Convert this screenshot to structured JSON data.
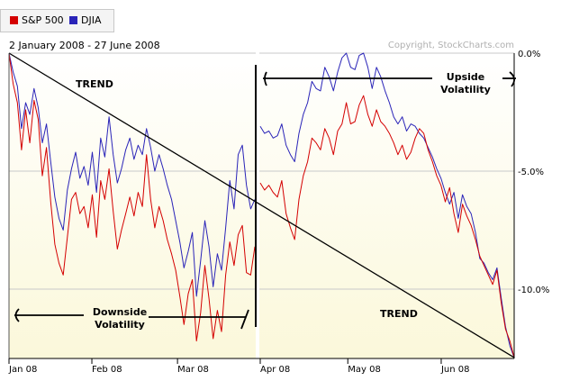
{
  "legend": {
    "items": [
      {
        "label": "S&P 500",
        "color": "#d40000"
      },
      {
        "label": "DJIA",
        "color": "#2a24b8"
      }
    ]
  },
  "header": {
    "date_range": "2 January 2008 - 27 June 2008",
    "copyright": "Copyright, StockCharts.com"
  },
  "annotations": {
    "trend_upper": "TREND",
    "trend_lower": "TREND",
    "upside_line1": "Upside",
    "upside_line2": "Volatility",
    "downside_line1": "Downside",
    "downside_line2": "Volatility"
  },
  "colors": {
    "background_top": "#ffffff",
    "background_bottom": "#fbf8da",
    "grid": "#c9c9c9",
    "axis": "#000000",
    "annotation": "#000000"
  },
  "chart_data": {
    "type": "line",
    "xlabel": "",
    "ylabel": "",
    "y_unit": "percent change",
    "ylim": [
      -12.9,
      0.5
    ],
    "yticks": [
      0,
      -5,
      -10
    ],
    "ytick_labels": [
      "0.0%",
      "-5.0%",
      "-10.0%"
    ],
    "xtick_labels": [
      "Jan 08",
      "Feb 08",
      "Mar 08",
      "Apr 08",
      "May 08",
      "Jun 08"
    ],
    "grid": true,
    "legend_position": "top-left",
    "series": [
      {
        "name": "S&P 500",
        "color": "#d40000",
        "segments": [
          {
            "start": "2008-01-02",
            "end": "2008-03-31",
            "values": [
              0.0,
              -1.3,
              -2.1,
              -4.1,
              -2.4,
              -3.8,
              -2.0,
              -2.8,
              -5.2,
              -4.0,
              -6.3,
              -8.1,
              -8.9,
              -9.4,
              -7.8,
              -6.2,
              -5.9,
              -6.8,
              -6.5,
              -7.4,
              -6.0,
              -7.8,
              -5.4,
              -6.2,
              -4.9,
              -6.7,
              -8.3,
              -7.5,
              -6.8,
              -6.1,
              -6.9,
              -5.9,
              -6.5,
              -4.3,
              -6.2,
              -7.4,
              -6.5,
              -7.1,
              -7.9,
              -8.5,
              -9.2,
              -10.3,
              -11.5,
              -10.2,
              -9.6,
              -12.2,
              -11.0,
              -9.0,
              -10.4,
              -12.1,
              -10.9,
              -11.8,
              -9.4,
              -8.0,
              -9.0,
              -7.7,
              -7.3,
              -9.3,
              -9.4,
              -8.2
            ]
          },
          {
            "start": "2008-04-01",
            "end": "2008-06-27",
            "values": [
              -5.5,
              -5.8,
              -5.6,
              -5.9,
              -6.1,
              -5.4,
              -6.8,
              -7.4,
              -7.9,
              -6.2,
              -5.2,
              -4.6,
              -3.6,
              -3.8,
              -4.1,
              -3.2,
              -3.6,
              -4.3,
              -3.3,
              -3.0,
              -2.1,
              -3.0,
              -2.9,
              -2.2,
              -1.8,
              -2.6,
              -3.1,
              -2.4,
              -2.9,
              -3.1,
              -3.4,
              -3.8,
              -4.3,
              -3.9,
              -4.5,
              -4.2,
              -3.6,
              -3.2,
              -3.4,
              -4.1,
              -4.6,
              -5.2,
              -5.6,
              -6.3,
              -5.7,
              -6.8,
              -7.6,
              -6.4,
              -6.9,
              -7.3,
              -7.9,
              -8.6,
              -9.0,
              -9.4,
              -9.8,
              -9.2,
              -10.6,
              -11.7,
              -12.2,
              -12.9
            ]
          }
        ]
      },
      {
        "name": "DJIA",
        "color": "#2a24b8",
        "segments": [
          {
            "start": "2008-01-02",
            "end": "2008-03-31",
            "values": [
              0.0,
              -0.8,
              -1.4,
              -3.2,
              -2.1,
              -2.6,
              -1.5,
              -2.3,
              -3.8,
              -3.0,
              -4.6,
              -6.1,
              -7.0,
              -7.5,
              -5.8,
              -4.9,
              -4.2,
              -5.3,
              -4.8,
              -5.6,
              -4.2,
              -5.9,
              -3.6,
              -4.4,
              -2.7,
              -4.3,
              -5.5,
              -4.9,
              -4.1,
              -3.6,
              -4.5,
              -3.9,
              -4.3,
              -3.2,
              -4.0,
              -5.0,
              -4.3,
              -4.9,
              -5.6,
              -6.2,
              -7.1,
              -8.0,
              -9.1,
              -8.4,
              -7.6,
              -10.3,
              -8.8,
              -7.1,
              -8.2,
              -9.9,
              -8.5,
              -9.2,
              -7.4,
              -5.4,
              -6.6,
              -4.3,
              -3.9,
              -5.6,
              -6.6,
              -6.2
            ]
          },
          {
            "start": "2008-04-01",
            "end": "2008-06-27",
            "values": [
              -3.1,
              -3.4,
              -3.3,
              -3.6,
              -3.5,
              -3.0,
              -3.9,
              -4.3,
              -4.6,
              -3.4,
              -2.6,
              -2.1,
              -1.2,
              -1.5,
              -1.6,
              -0.6,
              -1.0,
              -1.6,
              -0.8,
              -0.2,
              0.0,
              -0.6,
              -0.7,
              -0.1,
              0.0,
              -0.6,
              -1.5,
              -0.6,
              -1.0,
              -1.6,
              -2.1,
              -2.7,
              -3.0,
              -2.7,
              -3.3,
              -3.0,
              -3.1,
              -3.4,
              -3.6,
              -4.0,
              -4.4,
              -4.9,
              -5.3,
              -5.9,
              -6.4,
              -5.9,
              -7.0,
              -6.0,
              -6.5,
              -6.8,
              -7.6,
              -8.7,
              -8.9,
              -9.3,
              -9.6,
              -9.1,
              -10.4,
              -11.6,
              -12.4,
              -12.9
            ]
          }
        ]
      }
    ],
    "overlays": [
      {
        "kind": "trend-line",
        "label": "TREND",
        "from": {
          "date": "2008-01-02",
          "value": 0.0
        },
        "to": {
          "date": "2008-06-27",
          "value": -12.9
        }
      },
      {
        "kind": "channel",
        "label": "Upside Volatility",
        "level": -1.0
      },
      {
        "kind": "channel",
        "label": "Downside Volatility",
        "level": -11.0
      }
    ]
  }
}
